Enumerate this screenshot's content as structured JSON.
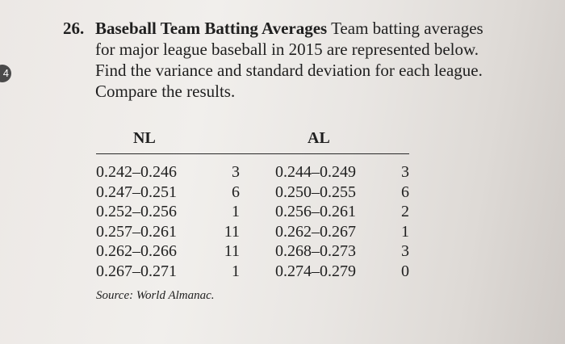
{
  "page_marker": "4",
  "exercise": {
    "number": "26.",
    "title": "Baseball Team Batting Averages",
    "text": " Team batting averages for major league baseball in 2015 are represented below. Find the variance and standard deviation for each league. Compare the results."
  },
  "table": {
    "headers": {
      "nl": "NL",
      "al": "AL"
    },
    "rows": [
      {
        "nl_range": "0.242–0.246",
        "nl_count": "3",
        "al_range": "0.244–0.249",
        "al_count": "3"
      },
      {
        "nl_range": "0.247–0.251",
        "nl_count": "6",
        "al_range": "0.250–0.255",
        "al_count": "6"
      },
      {
        "nl_range": "0.252–0.256",
        "nl_count": "1",
        "al_range": "0.256–0.261",
        "al_count": "2"
      },
      {
        "nl_range": "0.257–0.261",
        "nl_count": "11",
        "al_range": "0.262–0.267",
        "al_count": "1"
      },
      {
        "nl_range": "0.262–0.266",
        "nl_count": "11",
        "al_range": "0.268–0.273",
        "al_count": "3"
      },
      {
        "nl_range": "0.267–0.271",
        "nl_count": "1",
        "al_range": "0.274–0.279",
        "al_count": "0"
      }
    ],
    "source_label": "Source: World Almanac."
  }
}
